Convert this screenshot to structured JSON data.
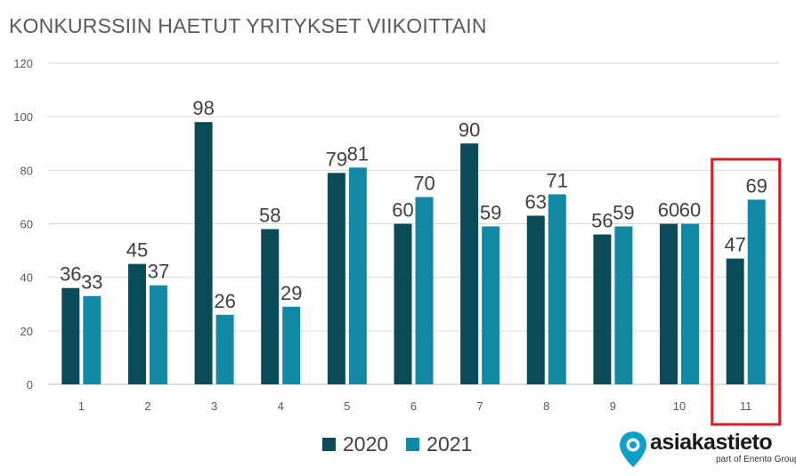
{
  "chart_data": {
    "type": "bar",
    "title": "KONKURSSIIN HAETUT YRITYKSET VIIKOITTAIN",
    "categories": [
      "1",
      "2",
      "3",
      "4",
      "5",
      "6",
      "7",
      "8",
      "9",
      "10",
      "11"
    ],
    "series": [
      {
        "name": "2020",
        "color": "#0b4a57",
        "values": [
          36,
          45,
          98,
          58,
          79,
          60,
          90,
          63,
          56,
          60,
          47
        ]
      },
      {
        "name": "2021",
        "color": "#1189a5",
        "values": [
          33,
          37,
          26,
          29,
          81,
          70,
          59,
          71,
          59,
          60,
          69
        ]
      }
    ],
    "yticks": [
      0,
      20,
      40,
      60,
      80,
      100,
      120
    ],
    "ylim": [
      0,
      120
    ],
    "grid": true,
    "legend": "bottom",
    "highlight": {
      "category": "11",
      "color": "#d32027"
    }
  },
  "logo": {
    "name": "asiakastieto",
    "tagline": "part of Enento Group",
    "icon": "location-pin-icon",
    "color": "#0e9fc6"
  }
}
